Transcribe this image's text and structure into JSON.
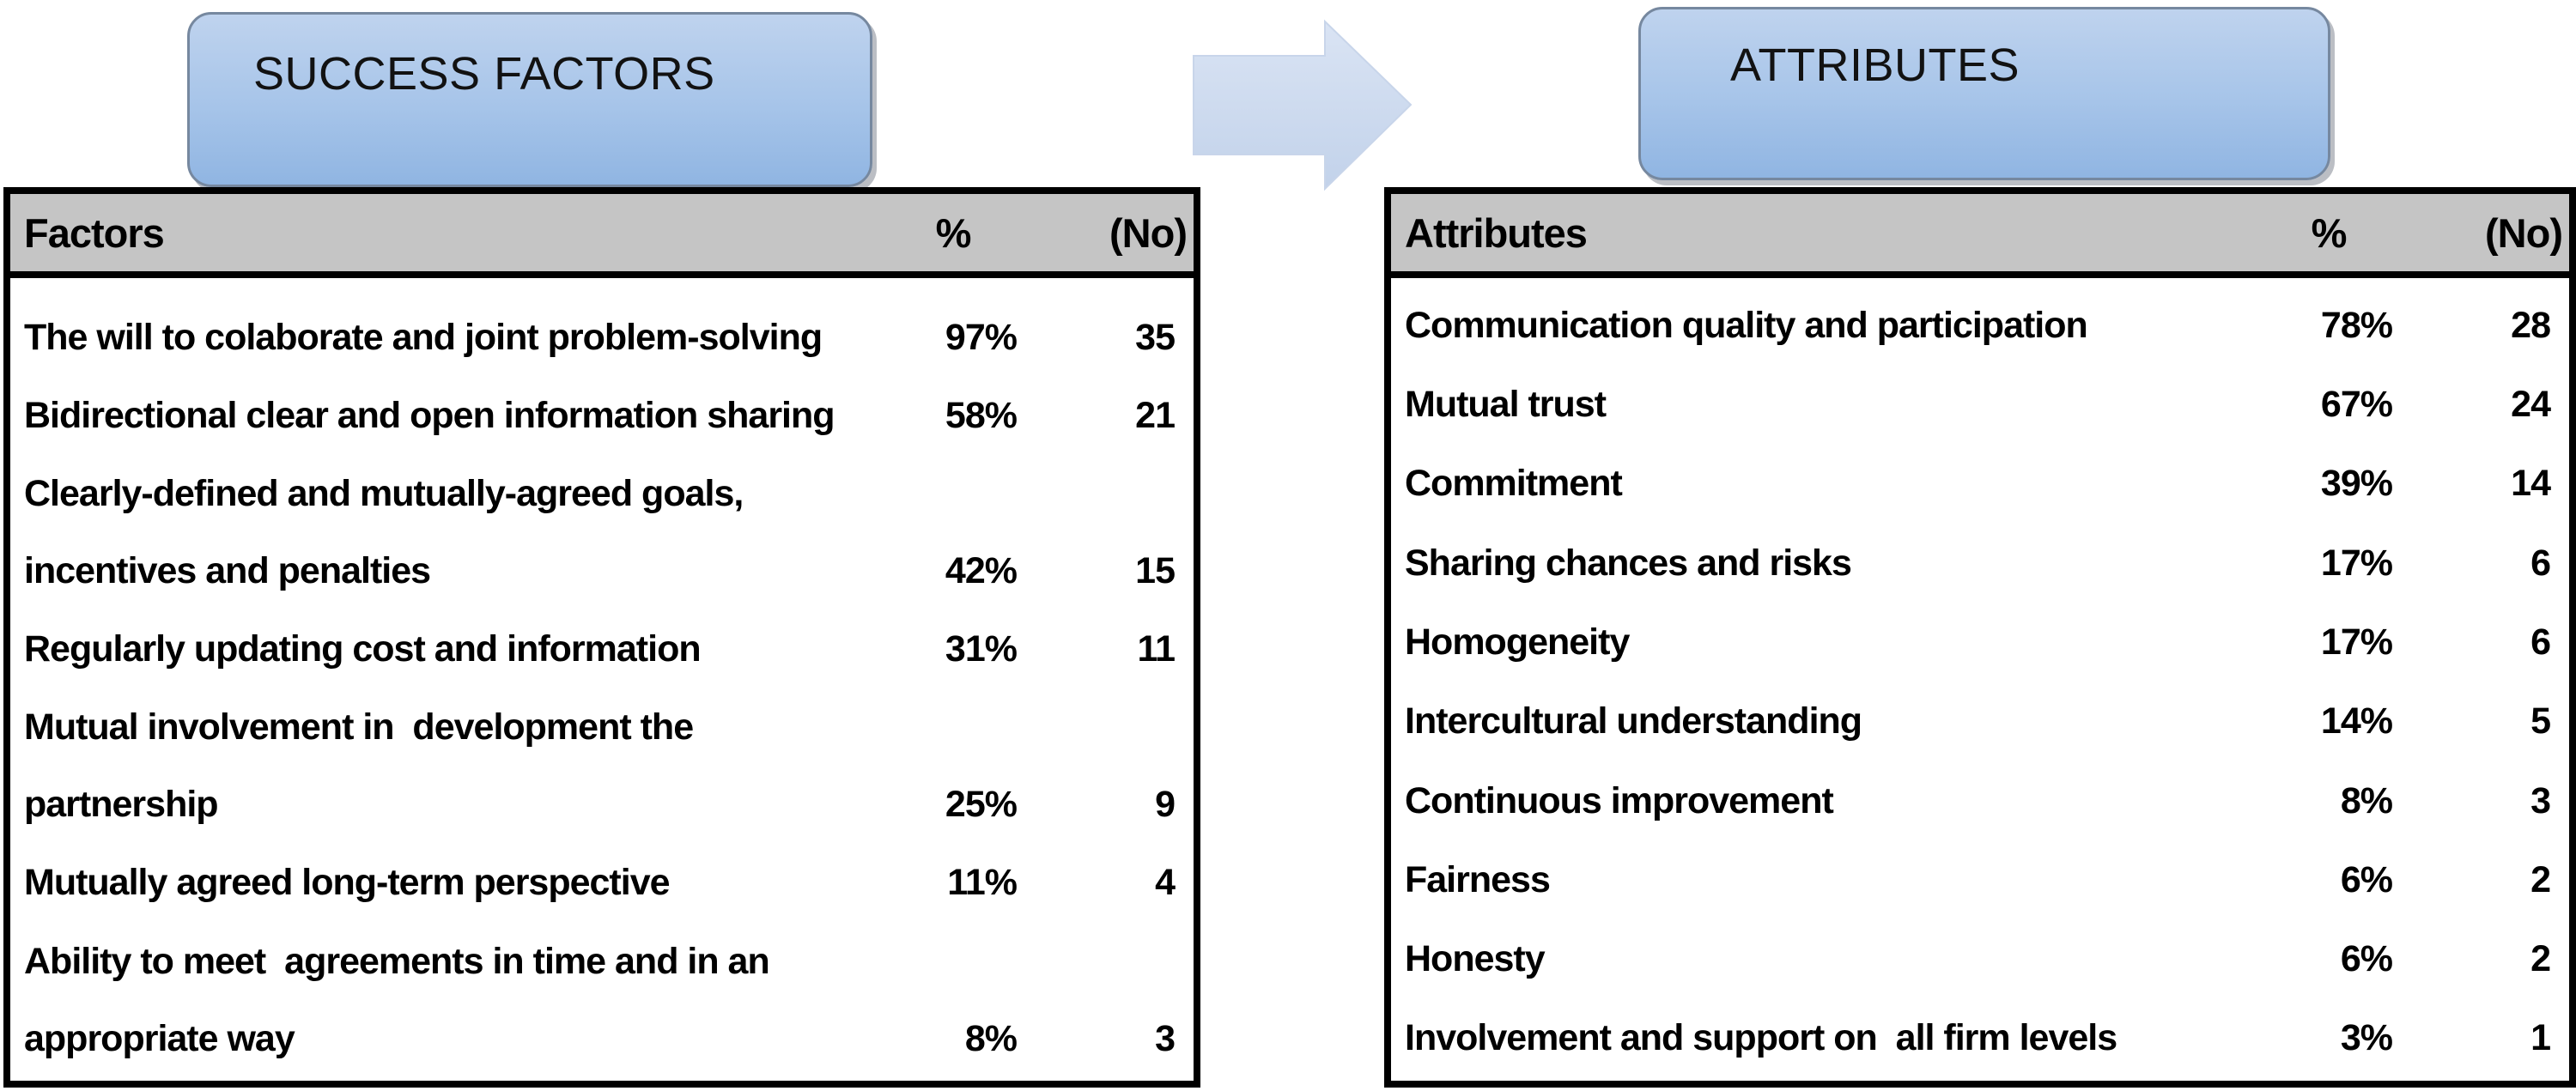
{
  "callouts": {
    "left_label": "SUCCESS FACTORS",
    "right_label": "ATTRIBUTES"
  },
  "arrow": {
    "icon": "right-block-arrow",
    "direction": "right"
  },
  "colors": {
    "callout_fill_top": "#bfd3ee",
    "callout_fill_bottom": "#90b5e2",
    "callout_border": "#76889f",
    "arrow_fill_top": "#dae4f4",
    "arrow_fill_bottom": "#c2d2ea",
    "table_header_gray": "#c5c5c5",
    "table_border": "#000000",
    "text": "#000000"
  },
  "left_table": {
    "columns": [
      "Factors",
      "%",
      "(No)"
    ],
    "rows": [
      {
        "lines": [
          "The will to colaborate and joint problem-solving"
        ],
        "pct": "97%",
        "no": "35"
      },
      {
        "lines": [
          "Bidirectional clear and open information sharing"
        ],
        "pct": "58%",
        "no": "21"
      },
      {
        "lines": [
          "Clearly-defined and mutually-agreed goals,",
          "incentives and penalties"
        ],
        "pct": "42%",
        "no": "15"
      },
      {
        "lines": [
          "Regularly updating cost and information"
        ],
        "pct": "31%",
        "no": "11"
      },
      {
        "lines": [
          "Mutual involvement in  development the",
          "partnership"
        ],
        "pct": "25%",
        "no": "9"
      },
      {
        "lines": [
          "Mutually agreed long-term perspective"
        ],
        "pct": "11%",
        "no": "4"
      },
      {
        "lines": [
          "Ability to meet  agreements in time and in an",
          "appropriate way"
        ],
        "pct": "8%",
        "no": "3"
      }
    ]
  },
  "right_table": {
    "columns": [
      "Attributes",
      "%",
      "(No)"
    ],
    "rows": [
      {
        "lines": [
          "Communication quality and participation"
        ],
        "pct": "78%",
        "no": "28"
      },
      {
        "lines": [
          "Mutual trust"
        ],
        "pct": "67%",
        "no": "24"
      },
      {
        "lines": [
          "Commitment"
        ],
        "pct": "39%",
        "no": "14"
      },
      {
        "lines": [
          "Sharing chances and risks"
        ],
        "pct": "17%",
        "no": "6"
      },
      {
        "lines": [
          "Homogeneity"
        ],
        "pct": "17%",
        "no": "6"
      },
      {
        "lines": [
          "Intercultural understanding"
        ],
        "pct": "14%",
        "no": "5"
      },
      {
        "lines": [
          "Continuous improvement"
        ],
        "pct": "8%",
        "no": "3"
      },
      {
        "lines": [
          "Fairness"
        ],
        "pct": "6%",
        "no": "2"
      },
      {
        "lines": [
          "Honesty"
        ],
        "pct": "6%",
        "no": "2"
      },
      {
        "lines": [
          "Involvement and support on  all firm levels"
        ],
        "pct": "3%",
        "no": "1"
      }
    ]
  }
}
